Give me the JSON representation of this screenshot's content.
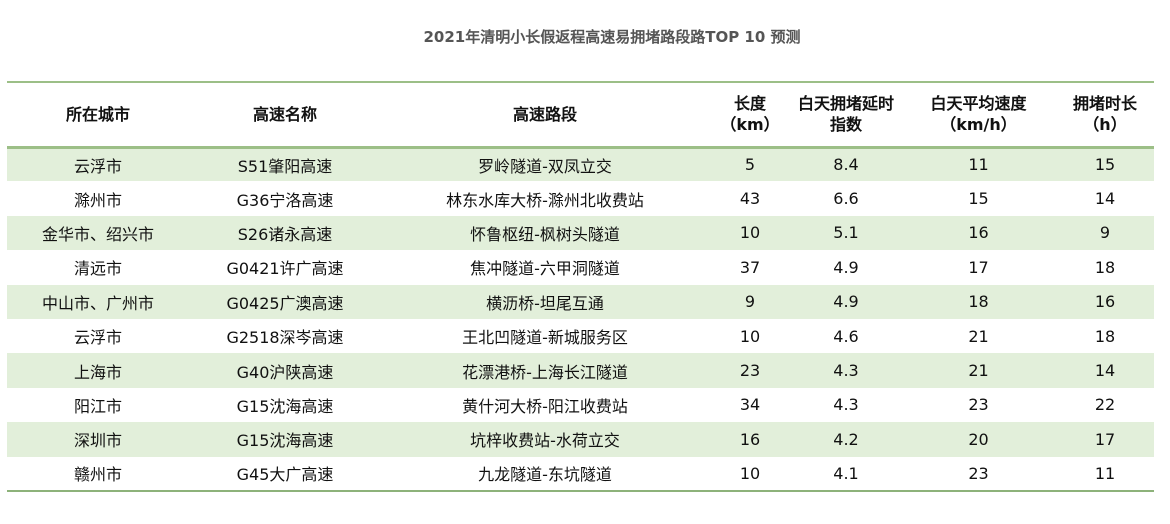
{
  "title": "2021年清明小长假返程高速易拥堵路段路TOP 10 预测",
  "colors": {
    "header_rule": "#9cbf87",
    "stripe": "#e2efda",
    "title": "#555555"
  },
  "chart_data": {
    "type": "table",
    "title": "2021年清明小长假返程高速易拥堵路段路TOP 10 预测",
    "columns": [
      {
        "line1": "所在城市",
        "line2": ""
      },
      {
        "line1": "高速名称",
        "line2": ""
      },
      {
        "line1": "高速路段",
        "line2": ""
      },
      {
        "line1": "长度",
        "line2": "（km）"
      },
      {
        "line1": "白天拥堵延时",
        "line2": "指数"
      },
      {
        "line1": "白天平均速度",
        "line2": "（km/h）"
      },
      {
        "line1": "拥堵时长",
        "line2": "（h）"
      }
    ],
    "rows": [
      [
        "云浮市",
        "S51肇阳高速",
        "罗岭隧道-双凤立交",
        "5",
        "8.4",
        "11",
        "15"
      ],
      [
        "滁州市",
        "G36宁洛高速",
        "林东水库大桥-滁州北收费站",
        "43",
        "6.6",
        "15",
        "14"
      ],
      [
        "金华市、绍兴市",
        "S26诸永高速",
        "怀鲁枢纽-枫树头隧道",
        "10",
        "5.1",
        "16",
        "9"
      ],
      [
        "清远市",
        "G0421许广高速",
        "焦冲隧道-六甲洞隧道",
        "37",
        "4.9",
        "17",
        "18"
      ],
      [
        "中山市、广州市",
        "G0425广澳高速",
        "横沥桥-坦尾互通",
        "9",
        "4.9",
        "18",
        "16"
      ],
      [
        "云浮市",
        "G2518深岑高速",
        "王北凹隧道-新城服务区",
        "10",
        "4.6",
        "21",
        "18"
      ],
      [
        "上海市",
        "G40沪陕高速",
        "花漂港桥-上海长江隧道",
        "23",
        "4.3",
        "21",
        "14"
      ],
      [
        "阳江市",
        "G15沈海高速",
        "黄什河大桥-阳江收费站",
        "34",
        "4.3",
        "23",
        "22"
      ],
      [
        "深圳市",
        "G15沈海高速",
        "坑梓收费站-水荷立交",
        "16",
        "4.2",
        "20",
        "17"
      ],
      [
        "赣州市",
        "G45大广高速",
        "九龙隧道-东坑隧道",
        "10",
        "4.1",
        "23",
        "11"
      ]
    ]
  }
}
